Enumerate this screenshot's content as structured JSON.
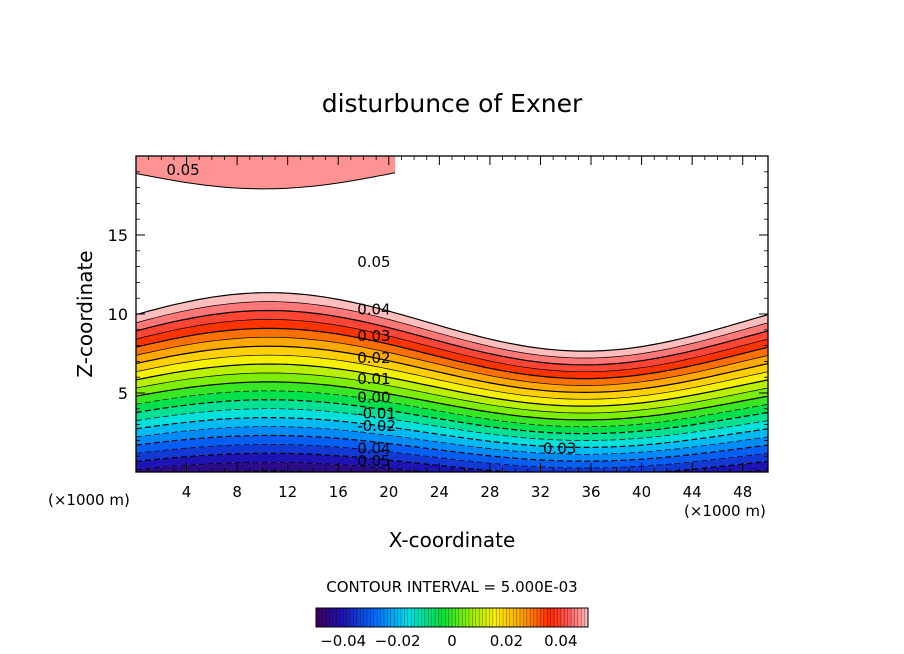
{
  "chart_data": {
    "type": "contour",
    "title": "disturbunce of Exner",
    "xlabel": "X-coordinate",
    "ylabel": "Z-coordinate",
    "x_unit_left": "(×1000 m)",
    "x_unit_right": "(×1000 m)",
    "xlim": [
      0,
      50
    ],
    "ylim": [
      0,
      20
    ],
    "x_ticks": [
      4,
      8,
      12,
      16,
      20,
      24,
      28,
      32,
      36,
      40,
      44,
      48
    ],
    "x_tick_labels": [
      "4",
      "8",
      "12",
      "16",
      "20",
      "24",
      "28",
      "32",
      "36",
      "40",
      "44",
      "48"
    ],
    "y_ticks": [
      5,
      10,
      15
    ],
    "y_tick_labels": [
      "5",
      "10",
      "15"
    ],
    "contour_interval_text": "CONTOUR INTERVAL = 5.000E-03",
    "contour_interval": 0.005,
    "field": {
      "offset_zero_level_z": 4.5,
      "gradient_per_km": 0.01,
      "wave_amplitude_km": 1.85,
      "wave_phase_x_km": 10.5,
      "wavelength_km": 50,
      "saturation_level": 0.05,
      "upper_region_description_from_colorbar": "upper band from 0.05 closing near z 18"
    },
    "contour_labels": [
      {
        "text": "0.05",
        "x": 17.5,
        "z": 13.3
      },
      {
        "text": "0.04",
        "x": 17.5,
        "z": 10.3
      },
      {
        "text": "0.03",
        "x": 17.5,
        "z": 8.6
      },
      {
        "text": "0.02",
        "x": 17.5,
        "z": 7.2
      },
      {
        "text": "0.01",
        "x": 17.5,
        "z": 5.9
      },
      {
        "text": "0.00",
        "x": 17.5,
        "z": 4.7
      },
      {
        "text": "-0.01",
        "x": 17.5,
        "z": 3.7
      },
      {
        "text": "-0.02",
        "x": 17.5,
        "z": 2.9
      },
      {
        "text": "0.03",
        "x": 32.2,
        "z": 1.5
      },
      {
        "text": "0.04",
        "x": 17.5,
        "z": 1.5
      },
      {
        "text": "0.05",
        "x": 17.5,
        "z": 0.7
      },
      {
        "text": "0.05",
        "x": 2.4,
        "z": 19.1
      }
    ],
    "colorbar": {
      "min": -0.05,
      "max": 0.05,
      "tick_values": [
        -0.04,
        -0.02,
        0,
        0.02,
        0.04
      ],
      "tick_labels": [
        "−0.04",
        "−0.02",
        "0",
        "0.02",
        "0.04"
      ]
    }
  }
}
